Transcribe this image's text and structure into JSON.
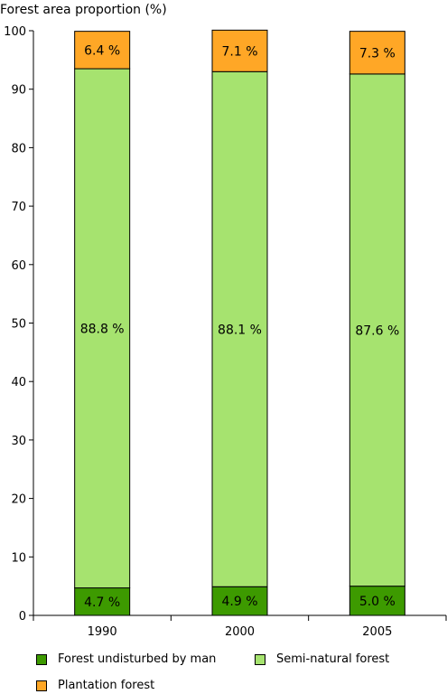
{
  "chart_data": {
    "type": "bar",
    "stacked": true,
    "title": "",
    "ylabel": "Forest area proportion (%)",
    "xlabel": "",
    "ylim": [
      0,
      100
    ],
    "yticks": [
      0,
      10,
      20,
      30,
      40,
      50,
      60,
      70,
      80,
      90,
      100
    ],
    "categories": [
      "1990",
      "2000",
      "2005"
    ],
    "series": [
      {
        "name": "Forest undisturbed by man",
        "color": "#3d9a00",
        "values": [
          4.7,
          4.9,
          5.0
        ],
        "labels": [
          "4.7 %",
          "4.9 %",
          "5.0 %"
        ]
      },
      {
        "name": "Semi-natural forest",
        "color": "#a6e36f",
        "values": [
          88.8,
          88.1,
          87.6
        ],
        "labels": [
          "88.8 %",
          "88.1 %",
          "87.6 %"
        ]
      },
      {
        "name": "Plantation forest",
        "color": "#ffa726",
        "values": [
          6.4,
          7.1,
          7.3
        ],
        "labels": [
          "6.4 %",
          "7.1 %",
          "7.3 %"
        ]
      }
    ],
    "grid": false,
    "legend_position": "bottom"
  }
}
